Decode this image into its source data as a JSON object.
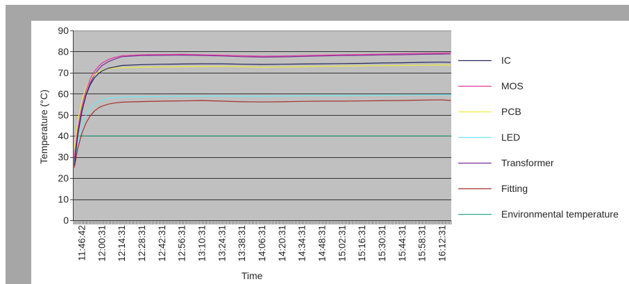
{
  "chart_data": {
    "type": "line",
    "xlabel": "Time",
    "ylabel": "Temperature (°C)",
    "ylim": [
      0,
      90
    ],
    "yticks": [
      0,
      10,
      20,
      30,
      40,
      50,
      60,
      70,
      80,
      90
    ],
    "xticks": [
      "11:46:42",
      "12:00:31",
      "12:14:31",
      "12:28:31",
      "12:42:31",
      "12:56:31",
      "13:10:31",
      "13:24:31",
      "13:38:31",
      "14:06:31",
      "14:20:31",
      "14:34:31",
      "14:48:31",
      "15:02:31",
      "15:16:31",
      "15:30:31",
      "15:44:31",
      "15:58:31",
      "16:12:31"
    ],
    "grid": "horizontal",
    "legend": "right",
    "background": "#c0c0c0",
    "x": [
      "11:41:30",
      "11:43:48",
      "11:46:42",
      "11:49:34",
      "11:52:28",
      "11:55:20",
      "11:58:13",
      "12:00:31",
      "12:05:00",
      "12:09:21",
      "12:14:31",
      "12:28:31",
      "12:42:31",
      "12:56:31",
      "13:10:31",
      "13:24:31",
      "13:38:31",
      "14:06:31",
      "14:20:31",
      "14:34:31",
      "14:48:31",
      "15:02:31",
      "15:16:31",
      "15:30:31",
      "15:44:31",
      "15:58:31",
      "16:12:31",
      "16:18:20"
    ],
    "series": [
      {
        "name": "IC",
        "color": "#25255e",
        "values": [
          26,
          40.2,
          51.8,
          59.4,
          64.3,
          67.5,
          69.6,
          70.8,
          72.1,
          72.7,
          73.4,
          73.8,
          74,
          74.1,
          74.2,
          74.2,
          74,
          73.9,
          74,
          74.1,
          74.2,
          74.3,
          74.4,
          74.6,
          74.7,
          74.9,
          75,
          74.9
        ]
      },
      {
        "name": "MOS",
        "color": "#e23a9e",
        "values": [
          30,
          43,
          54.1,
          61.7,
          67,
          70.6,
          73.1,
          74.5,
          76.2,
          77.2,
          78,
          78.5,
          78.6,
          78.7,
          78.5,
          78.3,
          78,
          77.8,
          77.9,
          78.1,
          78.3,
          78.5,
          78.6,
          78.8,
          79,
          79.2,
          79.3,
          79.4
        ]
      },
      {
        "name": "PCB",
        "color": "#f2ea3c",
        "values": [
          34,
          47.1,
          57.1,
          63.1,
          66.8,
          69.1,
          70.4,
          71.1,
          71.8,
          72.2,
          72.3,
          72.6,
          72.7,
          72.8,
          72.9,
          73,
          72.8,
          72.6,
          72.7,
          72.8,
          73,
          73.1,
          73.2,
          73.3,
          73.4,
          73.5,
          73.6,
          73.6
        ]
      },
      {
        "name": "LED",
        "color": "#6ce8f2",
        "values": [
          27,
          37,
          45,
          50,
          53.1,
          55.1,
          56.4,
          57.1,
          57.8,
          58.1,
          58.4,
          58.6,
          58.7,
          58.8,
          58.8,
          58.9,
          58.8,
          58.8,
          58.9,
          59,
          59.1,
          59.1,
          59.2,
          59.3,
          59.4,
          59.5,
          59.5,
          59.6
        ]
      },
      {
        "name": "Transformer",
        "color": "#7a2c98",
        "values": [
          28,
          40.8,
          51.8,
          59.6,
          65.1,
          68.9,
          71.6,
          73.3,
          75.2,
          76.4,
          77.6,
          78.1,
          78.2,
          78.3,
          78.1,
          77.9,
          77.6,
          77.4,
          77.5,
          77.7,
          77.9,
          78.1,
          78.2,
          78.4,
          78.5,
          78.7,
          78.8,
          78.9
        ]
      },
      {
        "name": "Fitting",
        "color": "#a3302c",
        "values": [
          25,
          33.9,
          41.3,
          46.2,
          49.5,
          51.8,
          53.3,
          54.1,
          55.1,
          55.6,
          56,
          56.3,
          56.5,
          56.6,
          56.8,
          56.5,
          56.2,
          56.1,
          56.2,
          56.4,
          56.5,
          56.5,
          56.6,
          56.7,
          56.8,
          57,
          57.1,
          56.8
        ]
      },
      {
        "name": "Environmental temperature",
        "color": "#2aa888",
        "values": [
          40,
          40,
          40,
          40,
          40,
          40,
          40,
          40,
          40,
          40,
          40,
          40,
          40,
          40,
          40,
          40,
          40,
          40,
          40,
          40,
          40,
          40,
          40,
          40,
          40,
          40,
          40,
          40
        ]
      }
    ]
  }
}
